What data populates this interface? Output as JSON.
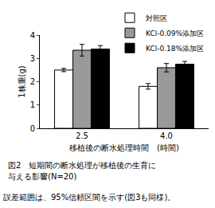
{
  "chart_data": {
    "type": "bar",
    "y_label": "1株重(g)",
    "x_label": "移植後の断水処理時間　(時間)",
    "categories": [
      "2.5",
      "4.0"
    ],
    "series": [
      {
        "name": "対照区",
        "color": "#ffffff",
        "values": [
          2.5,
          1.8
        ],
        "errors": [
          0.07,
          0.12
        ]
      },
      {
        "name": "KCl-0.09%添加区",
        "color": "#999999",
        "values": [
          3.35,
          2.6
        ],
        "errors": [
          0.25,
          0.18
        ]
      },
      {
        "name": "KCl-0.18%添加区",
        "color": "#000000",
        "values": [
          3.4,
          2.75
        ],
        "errors": [
          0.15,
          0.12
        ]
      }
    ],
    "ylim": [
      0,
      4
    ],
    "yticks": [
      0,
      1,
      2,
      3,
      4
    ],
    "grid": false,
    "legend": "top right",
    "caption": [
      "図2　短期間の断水処理が移植後の生育に",
      "与える影響(N=20)"
    ],
    "note": "誤差範囲は、95%信頼区間を示す(図3も同様)。"
  }
}
